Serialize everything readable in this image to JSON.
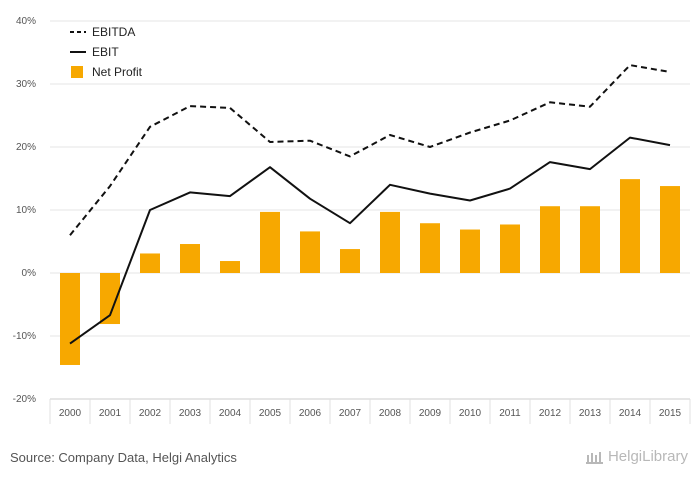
{
  "chart_data": {
    "type": "bar",
    "categories": [
      "2000",
      "2001",
      "2002",
      "2003",
      "2004",
      "2005",
      "2006",
      "2007",
      "2008",
      "2009",
      "2010",
      "2011",
      "2012",
      "2013",
      "2014",
      "2015"
    ],
    "ylim": [
      -20,
      40
    ],
    "yticks": [
      -20,
      -10,
      0,
      10,
      20,
      30,
      40
    ],
    "ytick_labels": [
      "-20%",
      "-10%",
      "0%",
      "10%",
      "20%",
      "30%",
      "40%"
    ],
    "grid": true,
    "legend_position": "top-left",
    "series": [
      {
        "name": "EBITDA",
        "type": "line",
        "style": "dashed",
        "color": "#111111",
        "values": [
          6.0,
          13.8,
          23.2,
          26.5,
          26.2,
          20.8,
          21.0,
          18.5,
          21.9,
          20.0,
          22.3,
          24.2,
          27.1,
          26.4,
          33.0,
          31.9
        ]
      },
      {
        "name": "EBIT",
        "type": "line",
        "style": "solid",
        "color": "#111111",
        "values": [
          -11.2,
          -6.7,
          10.0,
          12.8,
          12.2,
          16.8,
          11.8,
          7.9,
          14.0,
          12.6,
          11.5,
          13.4,
          17.6,
          16.5,
          21.5,
          20.3
        ]
      },
      {
        "name": "Net Profit",
        "type": "bar",
        "color": "#f7a800",
        "values": [
          -14.6,
          -8.1,
          3.1,
          4.6,
          1.9,
          9.7,
          6.6,
          3.8,
          9.7,
          7.9,
          6.9,
          7.7,
          10.6,
          10.6,
          14.9,
          13.8
        ]
      }
    ]
  },
  "footer": {
    "source": "Source: Company Data, Helgi Analytics",
    "brand": "HelgiLibrary"
  }
}
